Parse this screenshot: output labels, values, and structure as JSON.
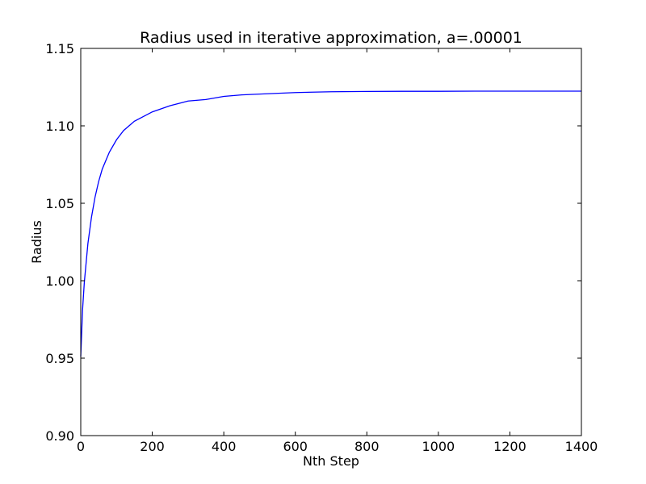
{
  "chart_data": {
    "type": "line",
    "title": "Radius used in iterative approximation, a=.00001",
    "xlabel": "Nth Step",
    "ylabel": "Radius",
    "xlim": [
      0,
      1400
    ],
    "ylim": [
      0.9,
      1.15
    ],
    "xticks": [
      0,
      200,
      400,
      600,
      800,
      1000,
      1200,
      1400
    ],
    "xtick_labels": [
      "0",
      "200",
      "400",
      "600",
      "800",
      "1000",
      "1200",
      "1400"
    ],
    "yticks": [
      0.9,
      0.95,
      1.0,
      1.05,
      1.1,
      1.15
    ],
    "ytick_labels": [
      "0.90",
      "0.95",
      "1.00",
      "1.05",
      "1.10",
      "1.15"
    ],
    "grid": false,
    "series": [
      {
        "color": "#0000ff",
        "x": [
          0,
          5,
          10,
          20,
          30,
          40,
          50,
          60,
          80,
          100,
          120,
          150,
          200,
          250,
          300,
          350,
          400,
          450,
          500,
          600,
          700,
          800,
          900,
          1000,
          1100,
          1200,
          1300,
          1400
        ],
        "y": [
          0.951,
          0.981,
          0.999,
          1.024,
          1.041,
          1.054,
          1.064,
          1.072,
          1.083,
          1.091,
          1.097,
          1.103,
          1.109,
          1.113,
          1.116,
          1.117,
          1.119,
          1.12,
          1.1205,
          1.1215,
          1.122,
          1.1222,
          1.1223,
          1.1223,
          1.1224,
          1.1224,
          1.1224,
          1.1224
        ]
      }
    ]
  }
}
